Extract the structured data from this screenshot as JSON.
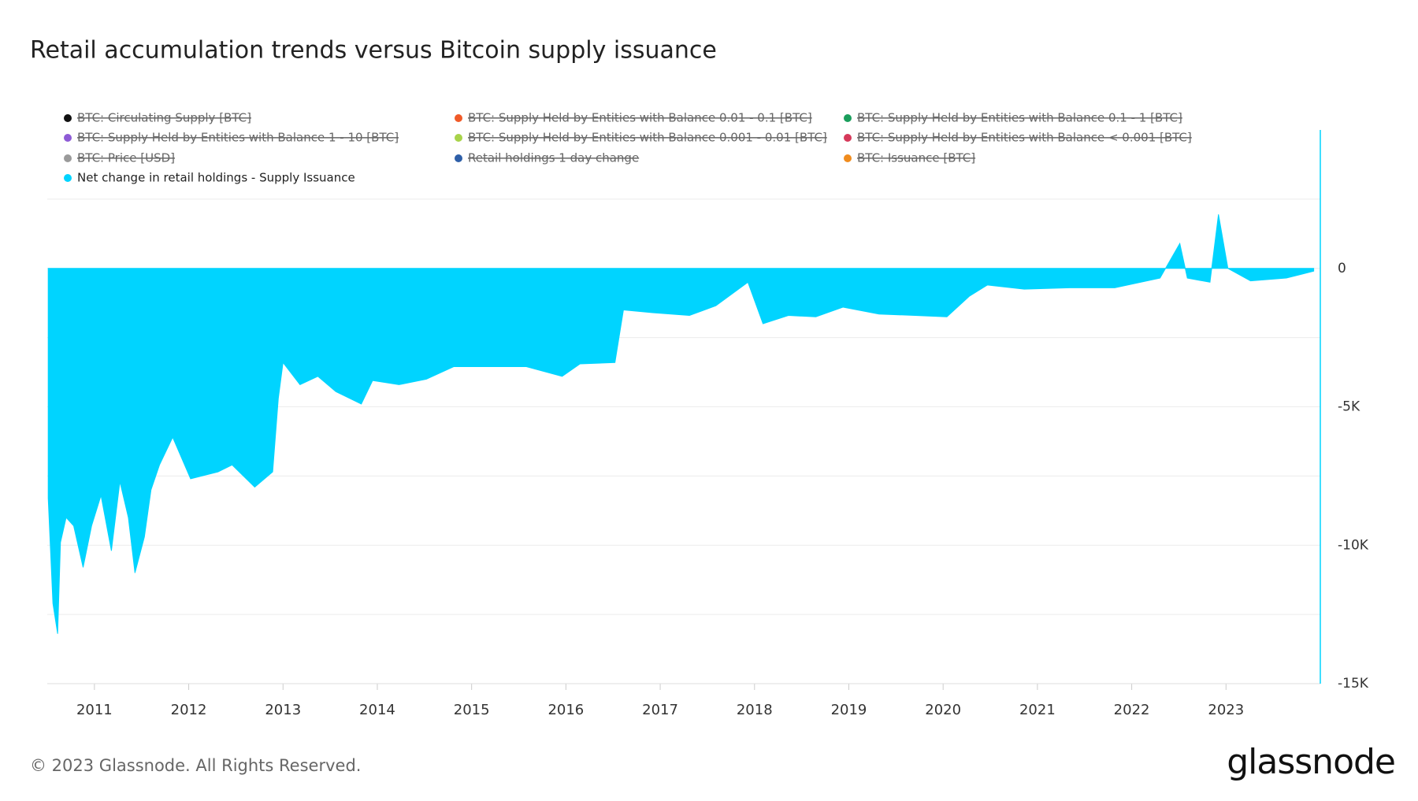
{
  "chart_data": {
    "type": "area",
    "title": "Retail accumulation trends versus Bitcoin supply issuance",
    "footer": "© 2023 Glassnode. All Rights Reserved.",
    "brand": "glassnode",
    "xlim": [
      2010.5,
      2024.0
    ],
    "xticks": [
      2011,
      2012,
      2013,
      2014,
      2015,
      2016,
      2017,
      2018,
      2019,
      2020,
      2021,
      2022,
      2023
    ],
    "ylim": [
      -15000,
      5000
    ],
    "yticks": [
      {
        "value": -15000,
        "label": "-15K"
      },
      {
        "value": -10000,
        "label": "-10K"
      },
      {
        "value": -5000,
        "label": "-5K"
      },
      0
    ],
    "minor_grid": [
      -12500,
      -7500,
      -2500,
      2500
    ],
    "grid": true,
    "series": [
      {
        "name": "BTC: Circulating Supply [BTC]",
        "color": "#111111",
        "visible": false
      },
      {
        "name": "BTC: Supply Held by Entities with Balance 0.01 - 0.1 [BTC]",
        "color": "#f05a28",
        "visible": false
      },
      {
        "name": "BTC: Supply Held by Entities with Balance 0.1 - 1 [BTC]",
        "color": "#1a9e5c",
        "visible": false
      },
      {
        "name": "BTC: Supply Held by Entities with Balance 1 - 10 [BTC]",
        "color": "#8e5bd6",
        "visible": false
      },
      {
        "name": "BTC: Supply Held by Entities with Balance 0.001 - 0.01 [BTC]",
        "color": "#a8d34a",
        "visible": false
      },
      {
        "name": "BTC: Supply Held by Entities with Balance < 0.001 [BTC]",
        "color": "#d6395a",
        "visible": false
      },
      {
        "name": "BTC: Price [USD]",
        "color": "#9a9a9a",
        "visible": false
      },
      {
        "name": "Retail holdings 1 day change",
        "color": "#2e5fa8",
        "visible": false
      },
      {
        "name": "BTC: Issuance [BTC]",
        "color": "#f08c1e",
        "visible": false
      },
      {
        "name": "Net change in retail holdings - Supply Issuance",
        "color": "#00d4ff",
        "visible": true,
        "x": [
          2010.51,
          2010.56,
          2010.61,
          2010.64,
          2010.7,
          2010.78,
          2010.88,
          2010.97,
          2011.07,
          2011.18,
          2011.27,
          2011.36,
          2011.43,
          2011.53,
          2011.6,
          2011.69,
          2011.83,
          2012.02,
          2012.31,
          2012.46,
          2012.7,
          2012.89,
          2012.95,
          2013.0,
          2013.18,
          2013.37,
          2013.56,
          2013.83,
          2013.95,
          2014.23,
          2014.52,
          2014.81,
          2015.19,
          2015.58,
          2015.96,
          2016.15,
          2016.52,
          2016.61,
          2016.92,
          2017.31,
          2017.59,
          2017.93,
          2018.09,
          2018.36,
          2018.65,
          2018.94,
          2019.32,
          2019.7,
          2020.04,
          2020.28,
          2020.47,
          2020.86,
          2021.34,
          2021.82,
          2022.3,
          2022.51,
          2022.59,
          2022.83,
          2022.92,
          2023.02,
          2023.26,
          2023.64,
          2023.93
        ],
        "values": [
          -8300,
          -12100,
          -13200,
          -9900,
          -9000,
          -9300,
          -10800,
          -9300,
          -8200,
          -10200,
          -7700,
          -9000,
          -11000,
          -9700,
          -8000,
          -7100,
          -6100,
          -7600,
          -7350,
          -7100,
          -7900,
          -7350,
          -4700,
          -3400,
          -4200,
          -3900,
          -4450,
          -4900,
          -4050,
          -4200,
          -4000,
          -3550,
          -3550,
          -3550,
          -3900,
          -3450,
          -3400,
          -1500,
          -1600,
          -1700,
          -1350,
          -500,
          -2000,
          -1700,
          -1750,
          -1400,
          -1650,
          -1700,
          -1750,
          -1000,
          -600,
          -750,
          -700,
          -700,
          -350,
          900,
          -350,
          -500,
          1950,
          0,
          -450,
          -350,
          -100
        ]
      }
    ]
  }
}
